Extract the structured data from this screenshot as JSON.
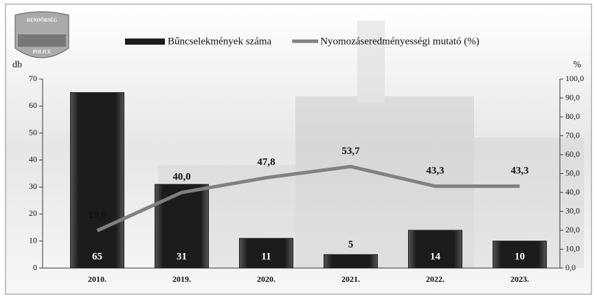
{
  "logo": {
    "top": "RENDŐRSÉG",
    "bottom": "POLICE"
  },
  "chart_data": {
    "type": "combo",
    "y_label": "db",
    "y2_label": "%",
    "categories": [
      "2010.",
      "2019.",
      "2020.",
      "2021.",
      "2022.",
      "2023."
    ],
    "series": [
      {
        "name": "Bűncselekmények száma",
        "type": "bar",
        "color": "#1c1c1c",
        "values": [
          65,
          31,
          11,
          5,
          14,
          10
        ]
      },
      {
        "name": "Nyomozáseredményességi mutató (%)",
        "type": "line",
        "axis": "y2",
        "color": "#808080",
        "values": [
          19.8,
          40.0,
          47.8,
          53.7,
          43.3,
          43.3
        ],
        "value_labels": [
          "19,8",
          "40,0",
          "47,8",
          "53,7",
          "43,3",
          "43,3"
        ]
      }
    ],
    "ylim": [
      0,
      70
    ],
    "yticks": [
      0,
      10,
      20,
      30,
      40,
      50,
      60,
      70
    ],
    "y2lim": [
      0,
      100
    ],
    "y2ticks": [
      {
        "value": 0,
        "label": "0,0"
      },
      {
        "value": 10,
        "label": "10,0"
      },
      {
        "value": 20,
        "label": "20,0"
      },
      {
        "value": 30,
        "label": "30,0"
      },
      {
        "value": 40,
        "label": "40,0"
      },
      {
        "value": 50,
        "label": "50,0"
      },
      {
        "value": 60,
        "label": "60,0"
      },
      {
        "value": 70,
        "label": "70,0"
      },
      {
        "value": 80,
        "label": "80,0"
      },
      {
        "value": 90,
        "label": "90,0"
      },
      {
        "value": 100,
        "label": "100,0"
      }
    ]
  }
}
